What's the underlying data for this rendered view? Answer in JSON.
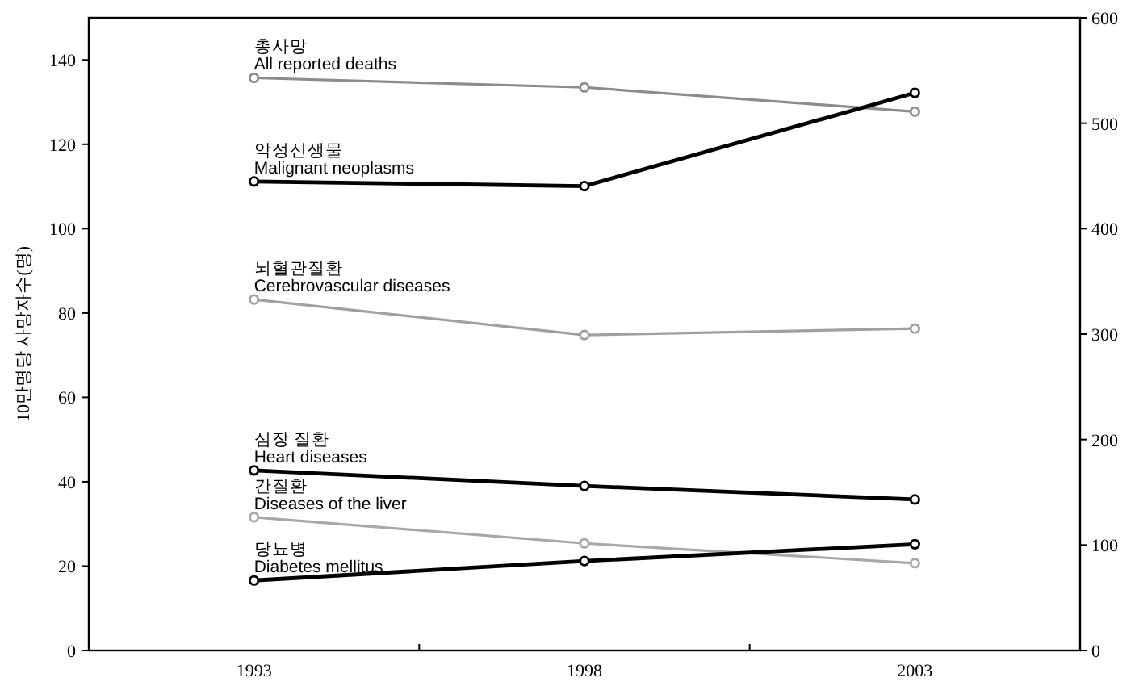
{
  "chart_data": {
    "type": "line",
    "ylabel": "10만명당 사망자수(명)",
    "categories": [
      "1993",
      "1998",
      "2003"
    ],
    "ylim": [
      0,
      150
    ],
    "yticks": [
      0,
      20,
      40,
      60,
      80,
      100,
      120,
      140
    ],
    "y2lim": [
      0,
      600
    ],
    "y2ticks": [
      0,
      100,
      200,
      300,
      400,
      500,
      600
    ],
    "marker": "circle",
    "line_style": "solid",
    "series": [
      {
        "name": "총사망\nAll reported deaths",
        "color": "#8c8c8c",
        "axis": "y2",
        "values": [
          543,
          534,
          511
        ]
      },
      {
        "name": "악성신생물\nMalignant neoplasms",
        "color": "#000000",
        "values": [
          111.2,
          110.1,
          132.2
        ]
      },
      {
        "name": "뇌혈관질환\nCerebrovascular diseases",
        "color": "#a0a0a0",
        "values": [
          83.2,
          74.8,
          76.3
        ]
      },
      {
        "name": "심장 질환\nHeart diseases",
        "color": "#000000",
        "values": [
          42.7,
          39.0,
          35.8
        ]
      },
      {
        "name": "간질환\nDiseases of the liver",
        "color": "#a8a8a8",
        "values": [
          31.6,
          25.4,
          20.7
        ]
      },
      {
        "name": "당뇨병\nDiabetes mellitus",
        "color": "#000000",
        "values": [
          16.6,
          21.2,
          25.2
        ]
      }
    ]
  }
}
